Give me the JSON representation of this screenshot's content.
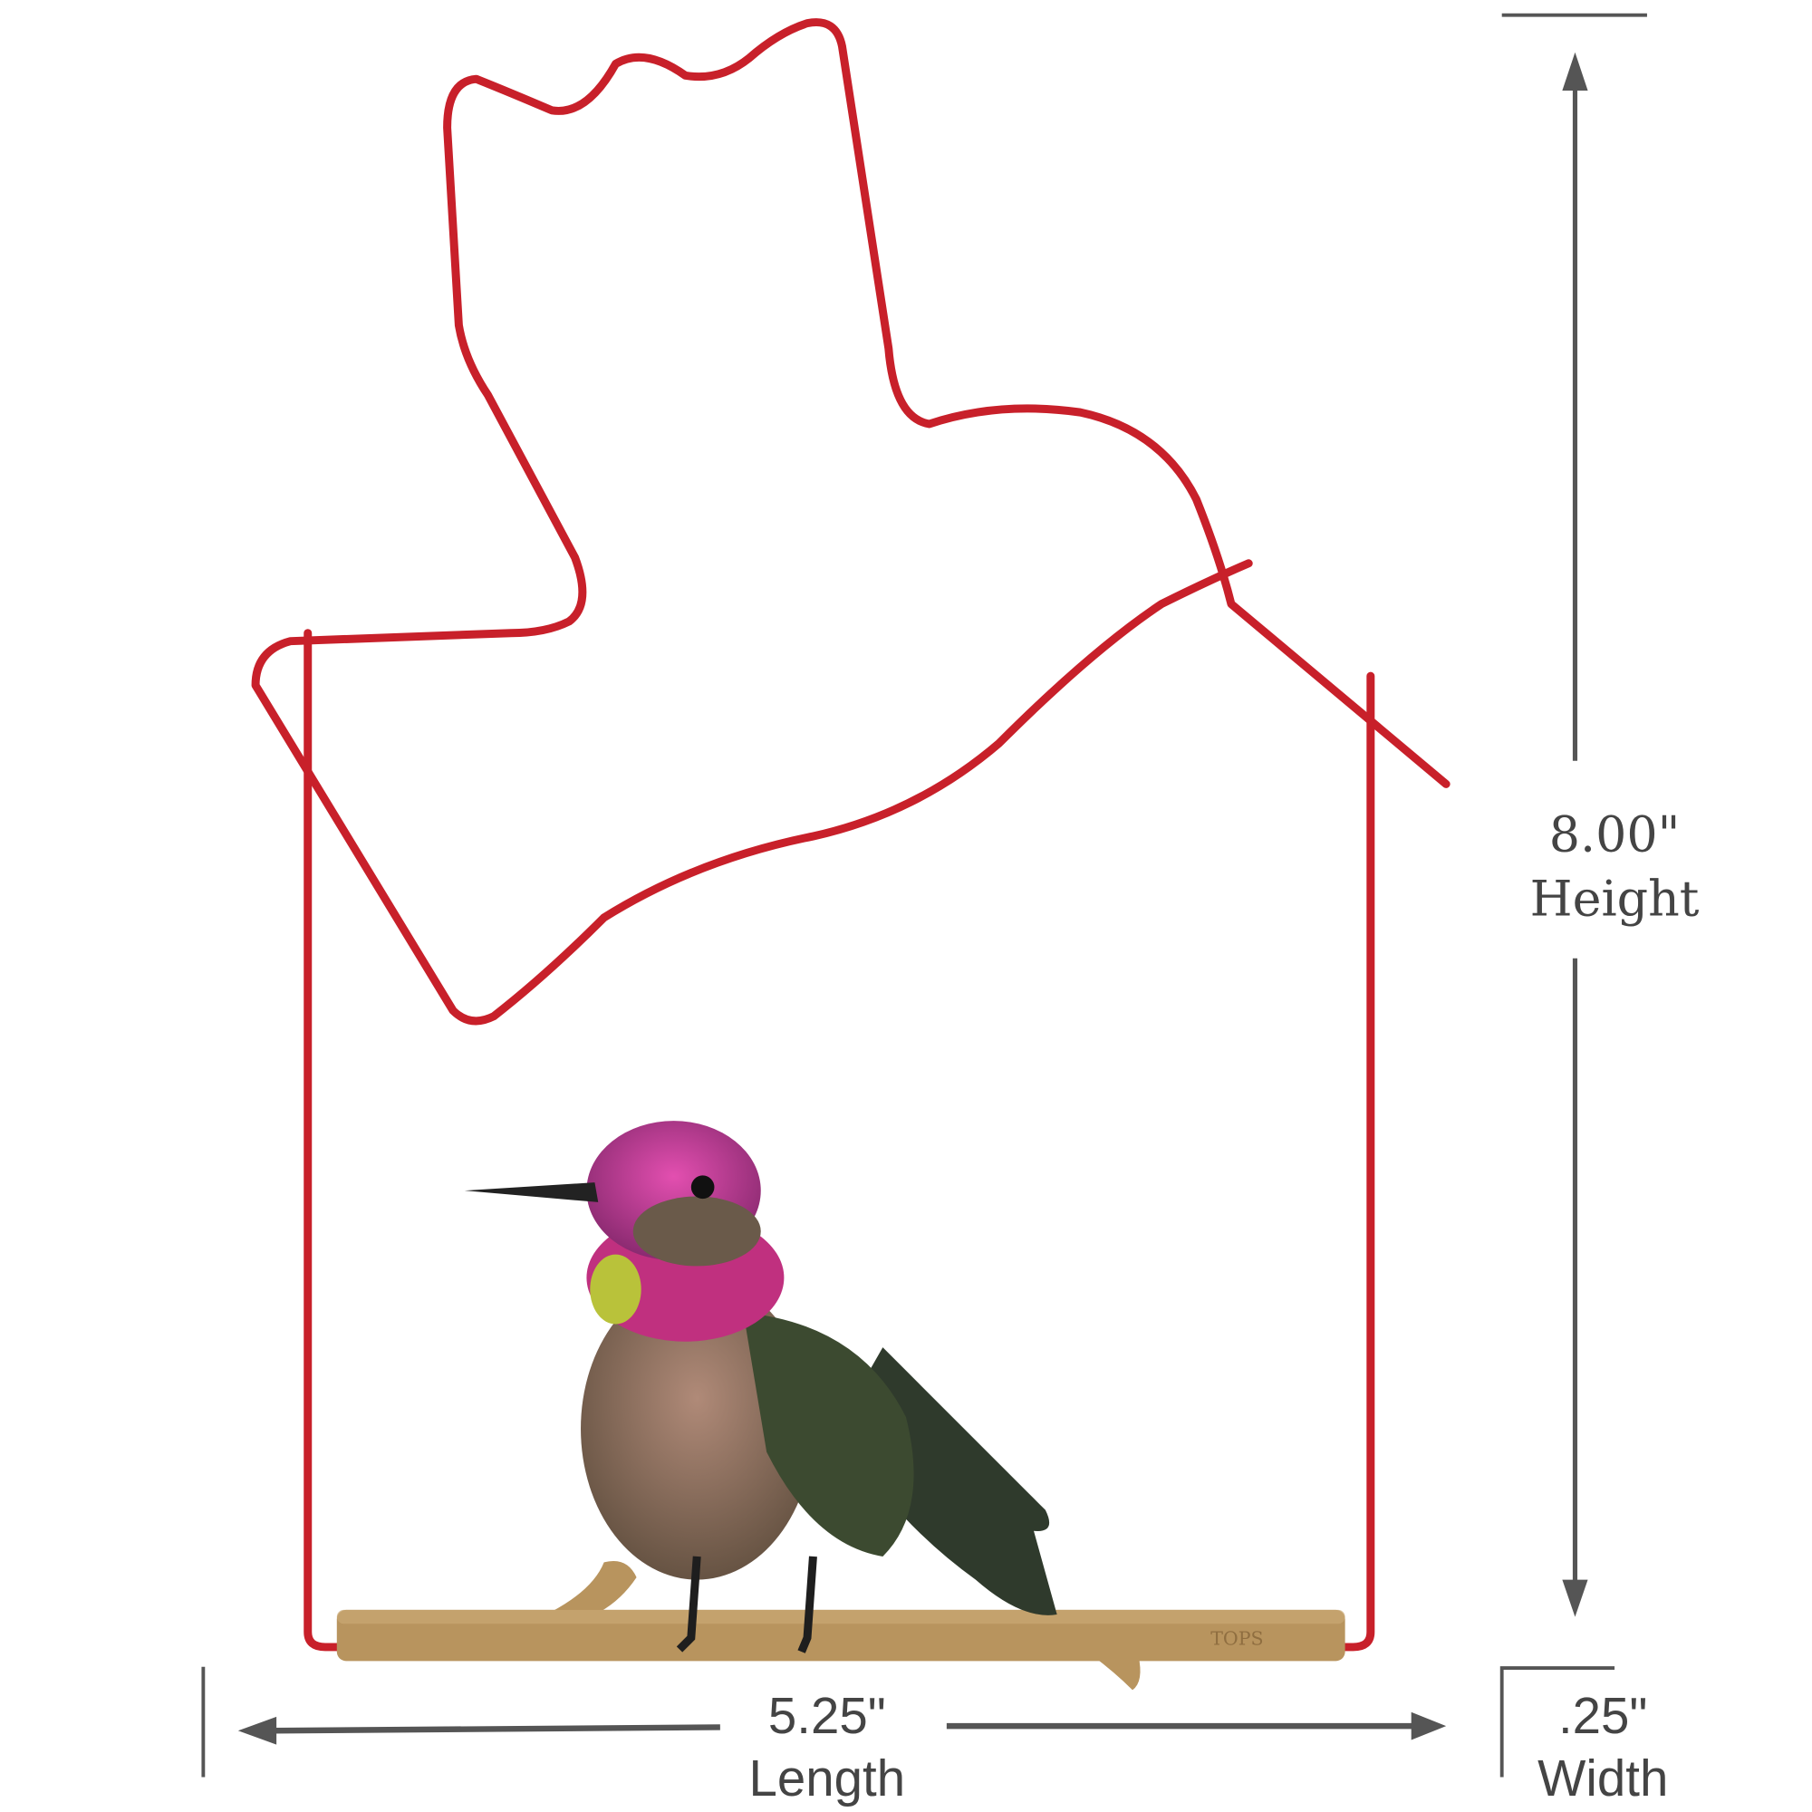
{
  "dimensions": {
    "height": {
      "value": "8.00\"",
      "label": "Height"
    },
    "length": {
      "value": "5.25\"",
      "label": "Length"
    },
    "width": {
      "value": ".25\"",
      "label": "Width"
    }
  },
  "colors": {
    "wire": "#c8202a",
    "perch": "#b8945e",
    "dimension_lines": "#555555"
  },
  "product": {
    "perch_logo": "TOPS"
  }
}
